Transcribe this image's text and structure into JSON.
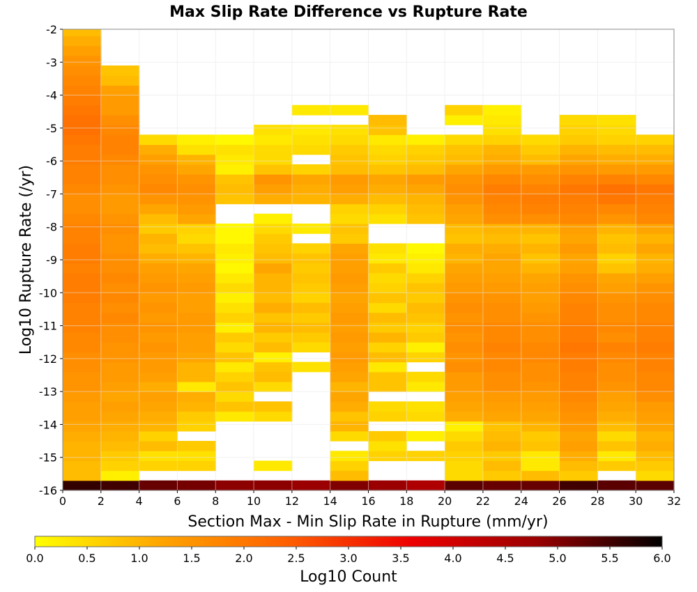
{
  "chart_data": {
    "type": "heatmap",
    "title": "Max Slip Rate Difference vs Rupture Rate",
    "xlabel": "Section Max - Min Slip Rate in Rupture (mm/yr)",
    "ylabel": "Log10 Rupture Rate (/yr)",
    "colorbar_label": "Log10 Count",
    "xlim": [
      0,
      32
    ],
    "ylim": [
      -16,
      -2
    ],
    "x_ticks": [
      "0",
      "2",
      "4",
      "6",
      "8",
      "10",
      "12",
      "14",
      "16",
      "18",
      "20",
      "22",
      "24",
      "26",
      "28",
      "30",
      "32"
    ],
    "y_ticks": [
      "-2",
      "-3",
      "-4",
      "-5",
      "-6",
      "-7",
      "-8",
      "-9",
      "-10",
      "-11",
      "-12",
      "-13",
      "-14",
      "-15",
      "-16"
    ],
    "colorbar_range": [
      0,
      6
    ],
    "colorbar_ticks": [
      "0.0",
      "0.5",
      "1.0",
      "1.5",
      "2.0",
      "2.5",
      "3.0",
      "3.5",
      "4.0",
      "4.5",
      "5.0",
      "5.5",
      "6.0"
    ],
    "colormap": [
      "#ffff00",
      "#ffa500",
      "#ff6000",
      "#ee0000",
      "#9a0000",
      "#000000"
    ],
    "x_bin_width": 2,
    "y_bin_width": 0.3,
    "y_bin_start": -16,
    "grid": true,
    "columns": [
      {
        "x": 0,
        "values": [
          5.6,
          0.9,
          0.9,
          1.0,
          1.0,
          1.1,
          1.2,
          1.3,
          1.3,
          1.4,
          1.5,
          1.5,
          1.6,
          1.6,
          1.7,
          1.7,
          1.8,
          1.8,
          1.8,
          1.9,
          1.9,
          1.9,
          1.8,
          1.9,
          1.9,
          1.8,
          1.8,
          1.7,
          1.6,
          1.6,
          1.7,
          1.8,
          1.8,
          1.9,
          1.9,
          2.0,
          2.1,
          2.1,
          2.0,
          1.9,
          1.8,
          1.7,
          1.6,
          1.5,
          1.3,
          1.1,
          0.9
        ]
      },
      {
        "x": 2,
        "values": [
          5.5,
          0.2,
          0.6,
          0.7,
          0.9,
          1.0,
          1.1,
          1.2,
          1.3,
          1.2,
          1.3,
          1.4,
          1.4,
          1.5,
          1.5,
          1.6,
          1.6,
          1.7,
          1.6,
          1.7,
          1.6,
          1.7,
          1.6,
          1.6,
          1.5,
          1.5,
          1.6,
          1.5,
          1.4,
          1.4,
          1.5,
          1.6,
          1.6,
          1.7,
          1.8,
          1.8,
          1.7,
          1.6,
          1.4,
          1.4,
          1.3,
          0.9,
          0.8,
          null,
          null,
          null,
          null
        ]
      },
      {
        "x": 4,
        "values": [
          5.2,
          null,
          0.6,
          0.4,
          0.9,
          0.6,
          1.0,
          1.1,
          1.2,
          1.3,
          1.1,
          1.3,
          1.4,
          1.4,
          1.5,
          1.4,
          1.5,
          1.4,
          1.5,
          1.4,
          1.5,
          1.4,
          1.3,
          1.1,
          0.9,
          1.0,
          0.7,
          0.9,
          1.2,
          1.5,
          1.7,
          1.6,
          1.5,
          1.3,
          1.1,
          0.5,
          null,
          null,
          null,
          null,
          null,
          null,
          null,
          null,
          null,
          null,
          null
        ]
      },
      {
        "x": 6,
        "values": [
          5.1,
          null,
          0.6,
          0.4,
          0.7,
          null,
          0.6,
          0.7,
          1.0,
          1.1,
          0.3,
          1.0,
          1.0,
          1.2,
          1.3,
          1.3,
          1.4,
          1.4,
          1.3,
          1.3,
          1.4,
          1.3,
          1.2,
          1.0,
          0.8,
          0.5,
          0.6,
          1.2,
          1.4,
          1.5,
          1.6,
          1.5,
          1.2,
          1.0,
          0.4,
          0.2,
          null,
          null,
          null,
          null,
          null,
          null,
          null,
          null,
          null,
          null,
          null
        ]
      },
      {
        "x": 8,
        "values": [
          4.9,
          null,
          null,
          null,
          null,
          null,
          null,
          0.3,
          0.8,
          0.5,
          0.8,
          0.6,
          0.3,
          0.8,
          0.5,
          0.7,
          0.2,
          0.6,
          0.4,
          0.2,
          0.5,
          0.3,
          0.1,
          0.2,
          0.3,
          0.1,
          0.1,
          null,
          null,
          0.8,
          0.9,
          0.8,
          0.2,
          0.3,
          0.4,
          0.1,
          null,
          null,
          null,
          null,
          null,
          null,
          null,
          null,
          null,
          null,
          null
        ]
      },
      {
        "x": 10,
        "values": [
          4.9,
          null,
          0.3,
          null,
          null,
          null,
          null,
          0.5,
          0.8,
          null,
          0.5,
          0.9,
          0.8,
          0.2,
          0.9,
          0.7,
          1.0,
          0.8,
          1.1,
          0.9,
          1.0,
          1.0,
          1.2,
          0.9,
          0.8,
          0.7,
          0.5,
          0.2,
          null,
          1.1,
          1.3,
          1.5,
          0.8,
          0.5,
          0.5,
          0.3,
          0.4,
          null,
          null,
          null,
          null,
          null,
          null,
          null,
          null,
          null,
          null
        ]
      },
      {
        "x": 12,
        "values": [
          4.8,
          null,
          null,
          null,
          null,
          null,
          null,
          null,
          null,
          null,
          null,
          null,
          0.4,
          null,
          0.5,
          0.7,
          0.9,
          0.7,
          0.9,
          0.6,
          0.7,
          0.8,
          0.7,
          0.8,
          0.6,
          null,
          0.3,
          null,
          null,
          1.0,
          1.1,
          1.2,
          0.6,
          null,
          0.5,
          0.4,
          0.3,
          null,
          0.3,
          null,
          null,
          null,
          null,
          null,
          null,
          null,
          null
        ]
      },
      {
        "x": 14,
        "values": [
          5.0,
          0.9,
          0.6,
          0.3,
          null,
          0.5,
          1.0,
          0.8,
          1.1,
          1.2,
          1.0,
          1.2,
          1.3,
          1.4,
          1.3,
          1.4,
          1.3,
          1.4,
          1.3,
          1.2,
          1.3,
          1.4,
          1.3,
          1.3,
          1.2,
          0.7,
          0.8,
          0.5,
          0.6,
          1.1,
          1.3,
          1.4,
          0.9,
          0.8,
          0.7,
          0.5,
          0.4,
          null,
          0.3,
          null,
          null,
          null,
          null,
          null,
          null,
          null,
          null
        ]
      },
      {
        "x": 16,
        "values": [
          4.8,
          null,
          null,
          0.6,
          0.4,
          0.7,
          null,
          0.6,
          0.5,
          null,
          0.8,
          0.8,
          0.3,
          0.9,
          0.6,
          1.0,
          0.7,
          0.9,
          0.5,
          0.8,
          0.6,
          0.5,
          0.7,
          0.3,
          0.4,
          null,
          null,
          0.4,
          0.6,
          0.9,
          1.1,
          1.2,
          0.8,
          0.6,
          0.5,
          0.3,
          0.8,
          0.9,
          null,
          null,
          null,
          null,
          null,
          null,
          null,
          null,
          null
        ]
      },
      {
        "x": 18,
        "values": [
          4.5,
          null,
          null,
          0.6,
          null,
          0.2,
          null,
          0.5,
          0.4,
          null,
          0.3,
          0.5,
          null,
          0.6,
          0.2,
          0.7,
          0.6,
          0.8,
          0.9,
          0.7,
          0.8,
          0.6,
          0.3,
          0.2,
          0.1,
          null,
          null,
          0.8,
          0.9,
          1.0,
          1.2,
          1.4,
          0.9,
          0.7,
          0.6,
          0.2,
          null,
          null,
          null,
          null,
          null,
          null,
          null,
          null,
          null,
          null,
          null
        ]
      },
      {
        "x": 20,
        "values": [
          5.3,
          0.5,
          0.5,
          0.6,
          0.7,
          0.5,
          0.2,
          1.1,
          1.2,
          1.3,
          1.4,
          1.4,
          1.6,
          1.5,
          1.6,
          1.5,
          1.6,
          1.5,
          1.6,
          1.5,
          1.4,
          1.3,
          1.2,
          1.0,
          1.1,
          0.8,
          0.9,
          1.2,
          1.3,
          1.5,
          1.6,
          1.5,
          1.2,
          0.9,
          0.8,
          0.5,
          null,
          0.2,
          0.6,
          null,
          null,
          null,
          null,
          null,
          null,
          null,
          null
        ]
      },
      {
        "x": 22,
        "values": [
          5.2,
          0.7,
          0.9,
          0.7,
          1.0,
          0.9,
          0.8,
          1.2,
          1.3,
          1.4,
          1.6,
          1.6,
          1.7,
          1.7,
          1.8,
          1.7,
          1.7,
          1.6,
          1.6,
          1.5,
          1.4,
          1.3,
          1.2,
          1.2,
          1.1,
          0.9,
          1.0,
          1.6,
          1.7,
          1.8,
          1.9,
          1.7,
          1.4,
          1.1,
          1.0,
          0.6,
          0.4,
          0.3,
          0.2,
          null,
          null,
          null,
          null,
          null,
          null,
          null,
          null
        ]
      },
      {
        "x": 24,
        "values": [
          5.2,
          0.9,
          0.3,
          0.3,
          0.8,
          0.7,
          1.0,
          1.2,
          1.3,
          1.4,
          1.5,
          1.6,
          1.6,
          1.7,
          1.7,
          1.6,
          1.6,
          1.5,
          1.4,
          1.3,
          1.3,
          1.2,
          1.0,
          0.8,
          1.0,
          0.8,
          1.0,
          1.6,
          1.8,
          1.9,
          1.8,
          1.6,
          1.4,
          0.9,
          0.7,
          0.5,
          null,
          null,
          null,
          null,
          null,
          null,
          null,
          null,
          null,
          null,
          null
        ]
      },
      {
        "x": 26,
        "values": [
          5.5,
          0.7,
          0.9,
          1.1,
          1.3,
          1.2,
          1.4,
          1.5,
          1.6,
          1.7,
          1.8,
          1.8,
          1.9,
          1.9,
          2.0,
          1.9,
          1.9,
          1.8,
          1.8,
          1.7,
          1.6,
          1.5,
          1.3,
          1.2,
          1.4,
          1.2,
          1.3,
          1.7,
          1.8,
          1.9,
          2.0,
          1.8,
          1.5,
          1.2,
          1.0,
          0.7,
          0.6,
          0.5,
          null,
          null,
          null,
          null,
          null,
          null,
          null,
          null,
          null
        ]
      },
      {
        "x": 28,
        "values": [
          5.3,
          null,
          0.7,
          0.3,
          0.8,
          0.5,
          0.9,
          1.1,
          1.2,
          1.3,
          1.5,
          1.6,
          1.6,
          1.7,
          1.8,
          1.6,
          1.7,
          1.6,
          1.6,
          1.5,
          1.3,
          1.2,
          0.8,
          0.6,
          0.9,
          0.8,
          1.0,
          1.5,
          1.7,
          2.0,
          2.1,
          1.8,
          1.4,
          1.1,
          0.9,
          0.6,
          0.5,
          0.4,
          null,
          null,
          null,
          null,
          null,
          null,
          null,
          null,
          null
        ]
      },
      {
        "x": 30,
        "values": [
          5.3,
          0.5,
          0.7,
          0.9,
          1.1,
          1.0,
          1.2,
          1.3,
          1.4,
          1.6,
          1.7,
          1.7,
          1.8,
          1.8,
          1.9,
          1.8,
          1.8,
          1.7,
          1.7,
          1.6,
          1.5,
          1.3,
          1.1,
          1.0,
          1.2,
          1.0,
          1.2,
          1.7,
          1.8,
          1.9,
          2.0,
          1.7,
          1.4,
          1.1,
          0.9,
          0.6,
          null,
          null,
          null,
          null,
          null,
          null,
          null,
          null,
          null,
          null,
          null
        ]
      }
    ]
  }
}
